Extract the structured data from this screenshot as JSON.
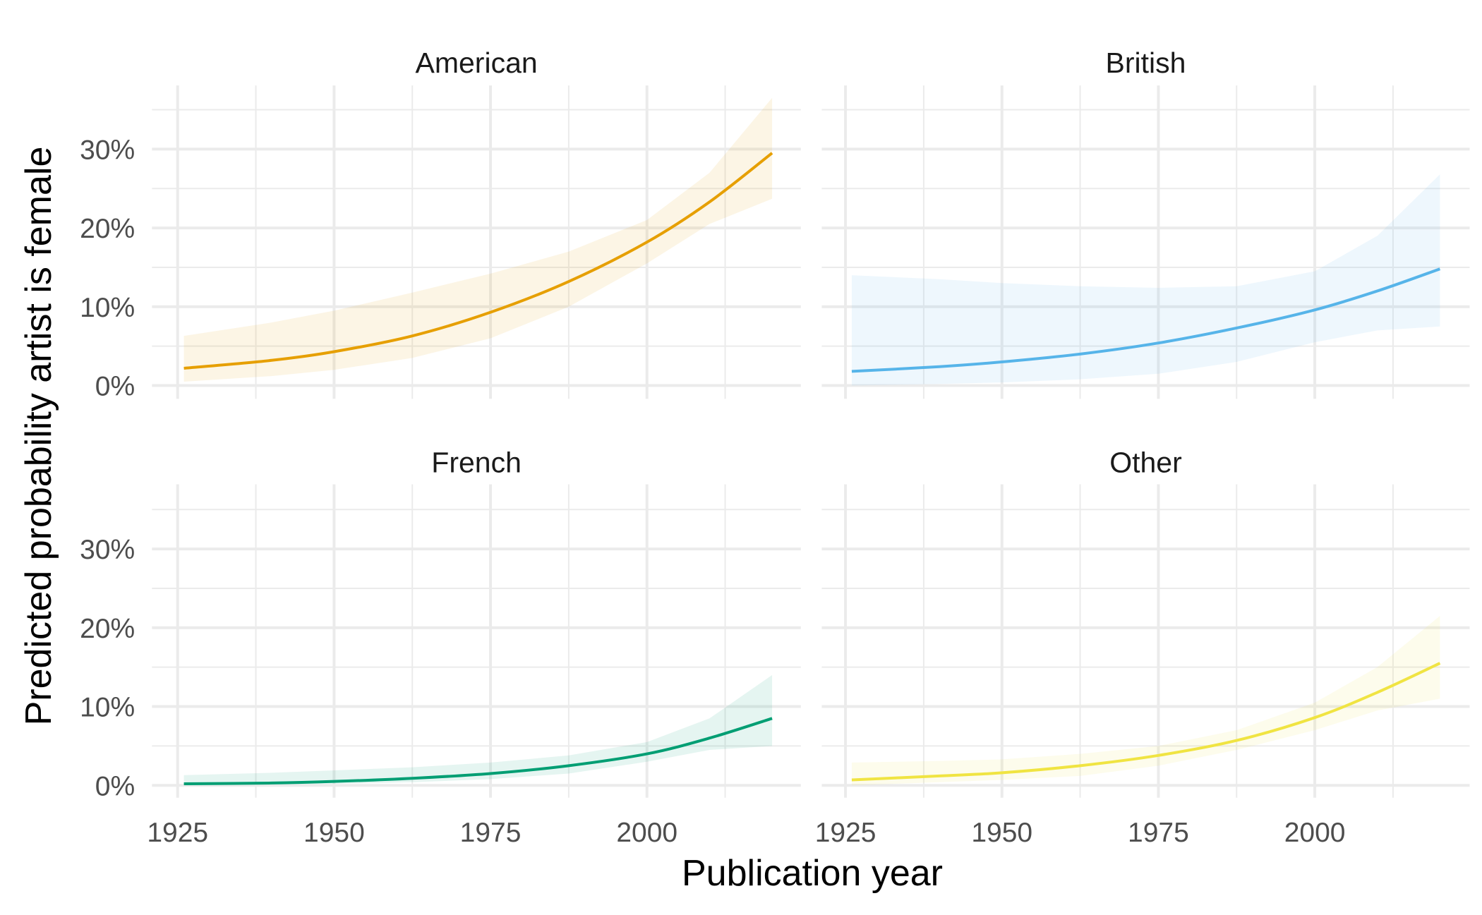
{
  "chart_data": {
    "type": "line",
    "title": "",
    "xlabel": "Publication year",
    "ylabel": "Predicted probability artist is female",
    "x_ticks": [
      1925,
      1950,
      1975,
      2000
    ],
    "x_tick_labels": [
      "1925",
      "1950",
      "1975",
      "2000"
    ],
    "y_ticks": [
      0,
      10,
      20,
      30
    ],
    "y_tick_labels": [
      "0%",
      "10%",
      "20%",
      "30%"
    ],
    "xlim": [
      1920.9,
      2024.6
    ],
    "ylim": [
      -1.6,
      38.2
    ],
    "grid": true,
    "legend": "none",
    "x": [
      1926,
      1940,
      1950,
      1962.5,
      1975,
      1987.5,
      2000,
      2010,
      2020
    ],
    "panels": [
      {
        "name": "American",
        "color": "#E69F00",
        "values": [
          2.2,
          3.2,
          4.3,
          6.3,
          9.3,
          13.2,
          18.2,
          23.3,
          29.5
        ],
        "lower": [
          0.5,
          1.2,
          2.0,
          3.5,
          6.0,
          10.0,
          15.5,
          20.5,
          23.7
        ],
        "upper": [
          6.3,
          8.0,
          9.5,
          11.8,
          14.2,
          17.0,
          21.0,
          27.0,
          36.5
        ]
      },
      {
        "name": "British",
        "color": "#56B4E9",
        "values": [
          1.8,
          2.4,
          3.0,
          4.0,
          5.4,
          7.3,
          9.6,
          12.0,
          14.8
        ],
        "lower": [
          0.0,
          0.2,
          0.4,
          0.8,
          1.5,
          3.0,
          5.5,
          7.0,
          7.5
        ],
        "upper": [
          14.0,
          13.5,
          13.0,
          12.6,
          12.4,
          12.6,
          14.5,
          19.0,
          26.8
        ]
      },
      {
        "name": "French",
        "color": "#009E73",
        "values": [
          0.2,
          0.3,
          0.5,
          0.9,
          1.5,
          2.5,
          4.0,
          6.0,
          8.5
        ],
        "lower": [
          0.0,
          0.1,
          0.2,
          0.4,
          0.8,
          1.5,
          3.0,
          4.5,
          5.0
        ],
        "upper": [
          1.3,
          1.6,
          1.9,
          2.3,
          2.9,
          3.8,
          5.5,
          8.5,
          14.0
        ]
      },
      {
        "name": "Other",
        "color": "#F0E442",
        "values": [
          0.7,
          1.2,
          1.6,
          2.5,
          3.8,
          5.7,
          8.6,
          11.8,
          15.5
        ],
        "lower": [
          0.0,
          0.4,
          0.7,
          1.2,
          2.5,
          4.5,
          7.0,
          9.5,
          11.0
        ],
        "upper": [
          2.9,
          3.1,
          3.3,
          4.0,
          5.0,
          7.0,
          10.5,
          15.0,
          21.5
        ]
      }
    ]
  }
}
